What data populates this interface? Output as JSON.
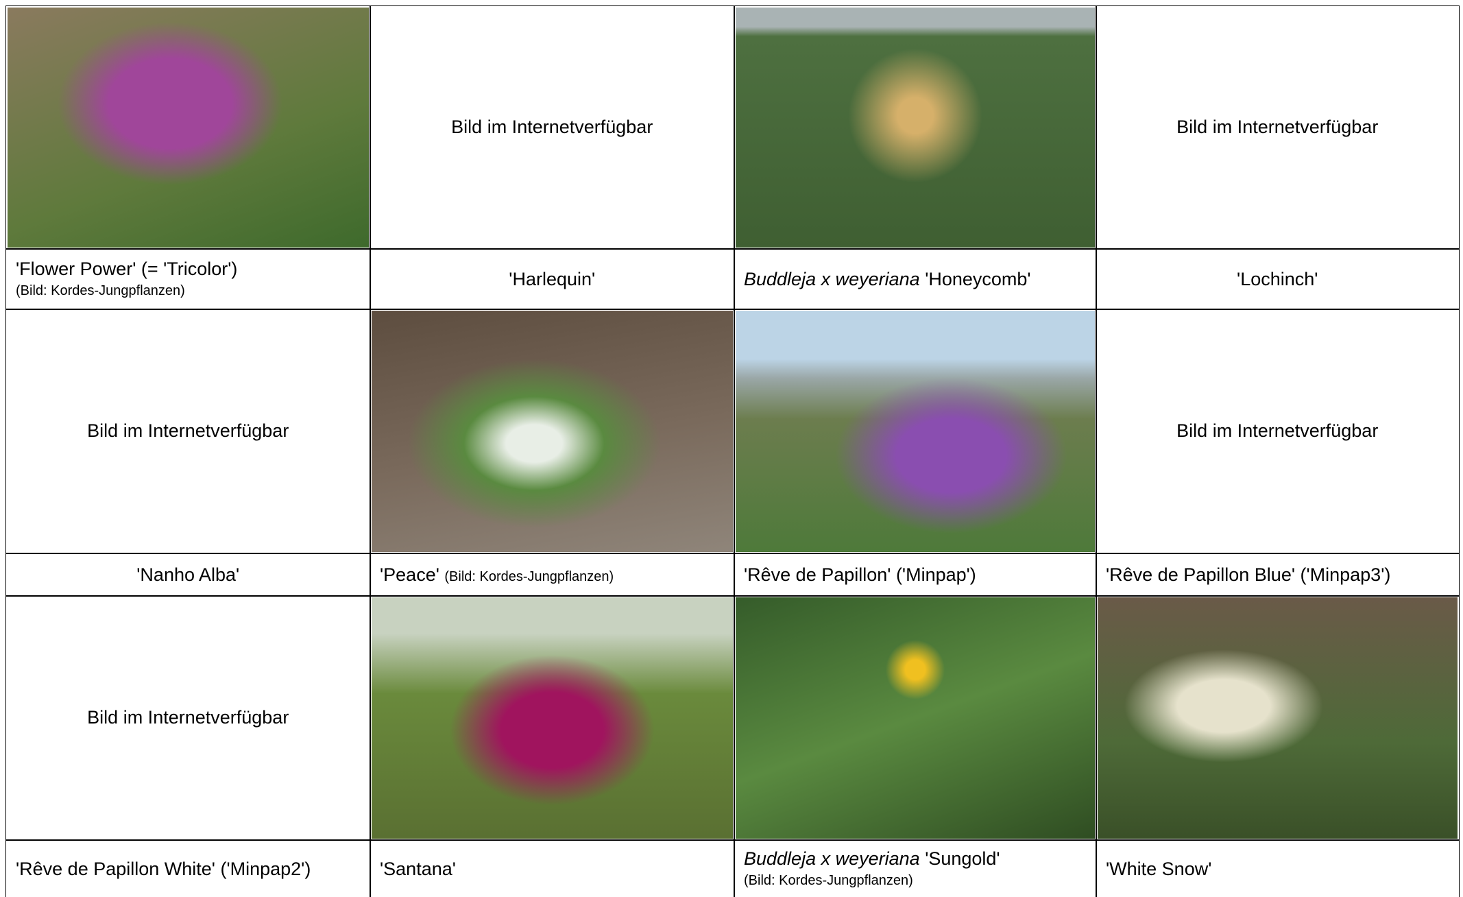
{
  "groups": [
    {
      "cells": [
        {
          "caption": {
            "name": "'Flower Power' (= 'Tricolor')",
            "note": "(Bild: Kordes-Jungpflanzen)"
          }
        },
        {
          "placeholder": "Bild im Internetverfügbar",
          "caption": {
            "name": "'Harlequin'"
          }
        },
        {
          "caption": {
            "italic": "Buddleja x weyeriana",
            "name": "'Honeycomb'"
          }
        },
        {
          "placeholder": "Bild im Internetverfügbar",
          "caption": {
            "name": "'Lochinch'"
          }
        }
      ]
    },
    {
      "cells": [
        {
          "placeholder": "Bild im Internetverfügbar",
          "caption": {
            "name": "'Nanho Alba'"
          }
        },
        {
          "caption": {
            "name": "'Peace'",
            "note": "(Bild: Kordes-Jungpflanzen)"
          }
        },
        {
          "caption": {
            "name": "'Rêve de Papillon' ('Minpap')"
          }
        },
        {
          "placeholder": "Bild im Internetverfügbar",
          "caption": {
            "name": "'Rêve de Papillon Blue' ('Minpap3')"
          }
        }
      ]
    },
    {
      "cells": [
        {
          "placeholder": "Bild im Internetverfügbar",
          "caption": {
            "name": "'Rêve de Papillon White' ('Minpap2')"
          }
        },
        {
          "caption": {
            "name": "'Santana'"
          }
        },
        {
          "caption": {
            "italic": "Buddleja x weyeriana",
            "name": "'Sungold'",
            "note": "(Bild: Kordes-Jungpflanzen)"
          }
        },
        {
          "caption": {
            "name": "'White Snow'"
          }
        }
      ]
    }
  ]
}
